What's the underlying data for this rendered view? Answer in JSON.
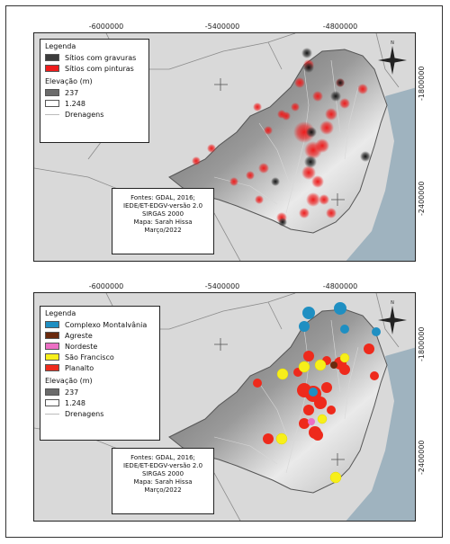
{
  "coords": {
    "x_labels": [
      "-6000000",
      "-5400000",
      "-4800000"
    ],
    "y_labels": [
      "-1800000",
      "-2400000"
    ]
  },
  "top_map": {
    "legend": {
      "title": "Legenda",
      "items": [
        {
          "label": "Sítios com gravuras",
          "color": "#3c3c3c"
        },
        {
          "label": "Sítios com pinturas",
          "color": "#ee1c1c"
        }
      ],
      "elevation_title": "Elevação (m)",
      "elevation_items": [
        {
          "label": "237",
          "color": "#6b6b6b"
        },
        {
          "label": "1.248",
          "color": "#ffffff"
        }
      ],
      "drainage_label": "Drenagens"
    },
    "source": {
      "line1": "Fontes: GDAL, 2016;",
      "line2": "IEDE/ET-EDGV-versão 2.0",
      "line3": "SIRGAS 2000",
      "line4": "Mapa: Sarah Hissa",
      "line5": "Março/2022"
    }
  },
  "bottom_map": {
    "legend": {
      "title": "Legenda",
      "items": [
        {
          "label": "Complexo Montalvânia",
          "color": "#1f8fc2"
        },
        {
          "label": "Agreste",
          "color": "#6b2a0e"
        },
        {
          "label": "Nordeste",
          "color": "#ec6fc4"
        },
        {
          "label": "São Francisco",
          "color": "#f7ef1a"
        },
        {
          "label": "Planalto",
          "color": "#ee2a1c"
        }
      ],
      "elevation_title": "Elevação (m)",
      "elevation_items": [
        {
          "label": "237",
          "color": "#6b6b6b"
        },
        {
          "label": "1.248",
          "color": "#ffffff"
        }
      ],
      "drainage_label": "Drenagens"
    },
    "source": {
      "line1": "Fontes: GDAL, 2016;",
      "line2": "IEDE/ET-EDGV-versão 2.0",
      "line3": "SIRGAS 2000",
      "line4": "Mapa: Sarah Hissa",
      "line5": "Março/2022"
    }
  },
  "north_arrow_label": "N",
  "colors": {
    "ocean": "#9fb3bf",
    "land_outside": "#d9d9d9",
    "state_border": "#888888",
    "drainage": "#cfcfcf"
  }
}
